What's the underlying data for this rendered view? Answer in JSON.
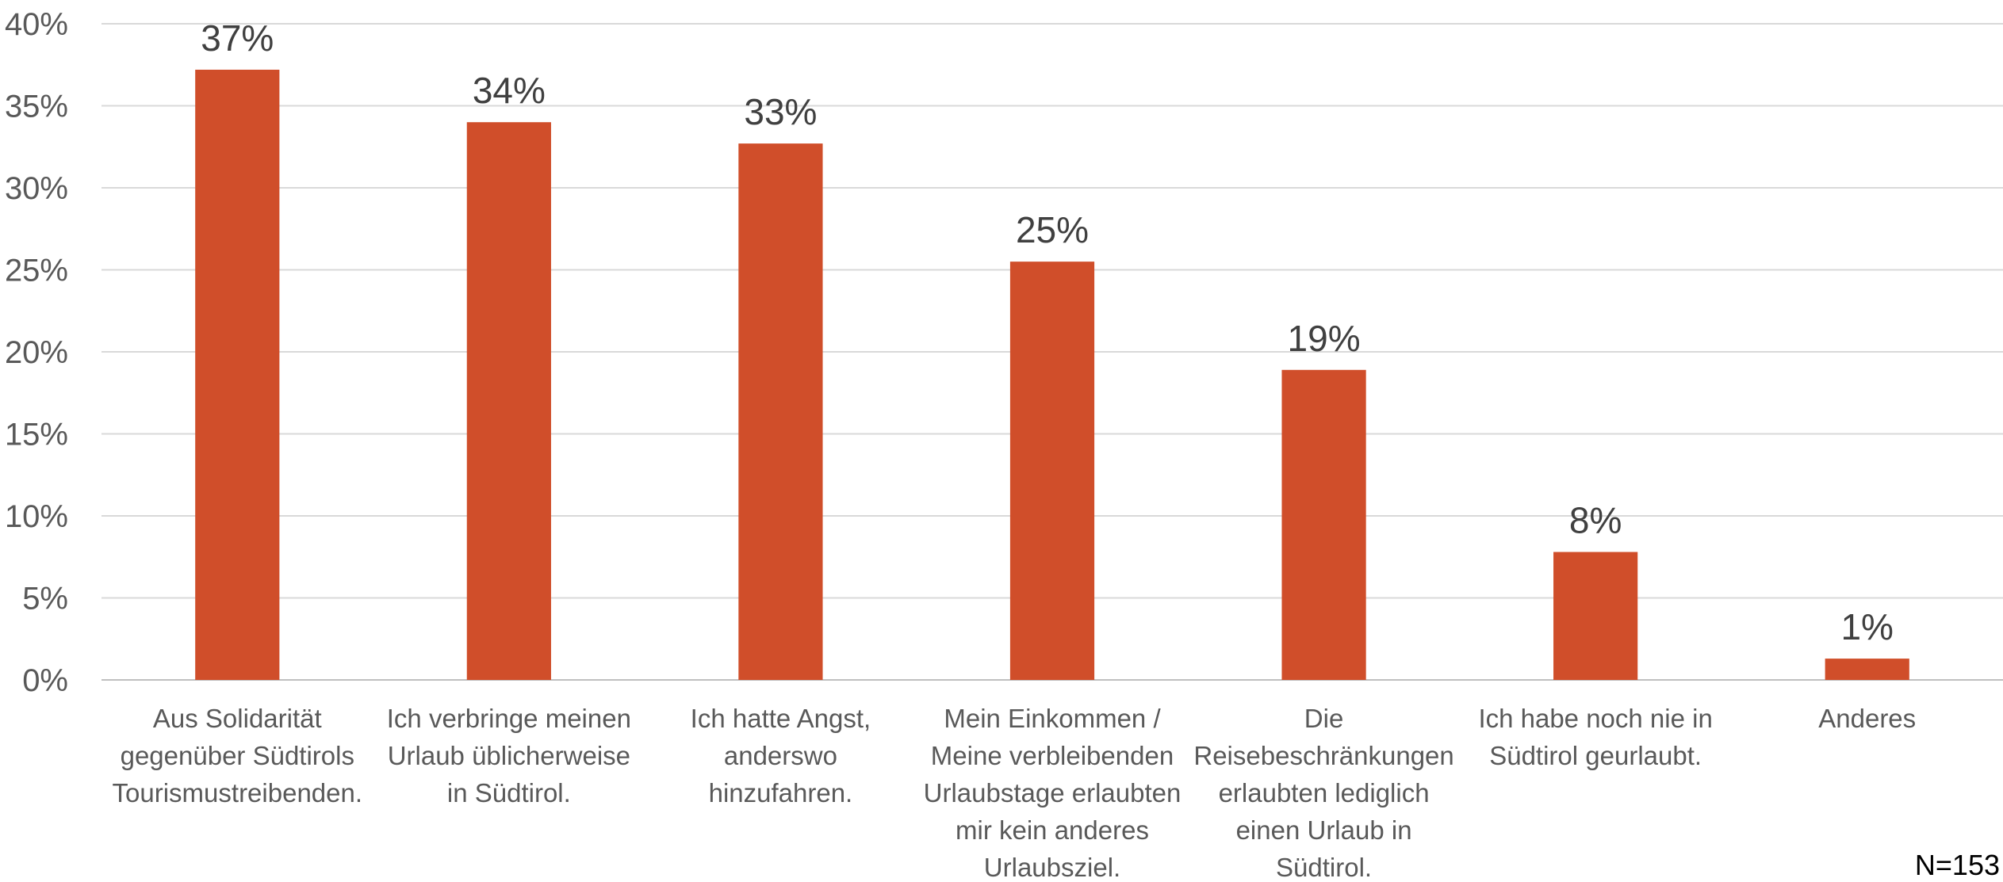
{
  "chart_data": {
    "type": "bar",
    "categories": [
      "Aus Solidarität gegenüber Südtirols Tourismustreibenden.",
      "Ich verbringe meinen Urlaub üblicherweise in Südtirol.",
      "Ich hatte Angst, anderswo hinzufahren.",
      "Mein Einkommen / Meine verbleibenden Urlaubstage erlaubten mir kein anderes Urlaubsziel.",
      "Die Reisebeschränkungen erlaubten lediglich einen Urlaub in Südtirol.",
      "Ich habe noch nie in Südtirol geurlaubt.",
      "Anderes"
    ],
    "category_lines": [
      [
        "Aus Solidarität",
        "gegenüber Südtirols",
        "Tourismustreibenden."
      ],
      [
        "Ich verbringe meinen",
        "Urlaub üblicherweise",
        "in Südtirol."
      ],
      [
        "Ich hatte Angst,",
        "anderswo",
        "hinzufahren."
      ],
      [
        "Mein Einkommen /",
        "Meine verbleibenden",
        "Urlaubstage erlaubten",
        "mir kein anderes",
        "Urlaubsziel."
      ],
      [
        "Die",
        "Reisebeschränkungen",
        "erlaubten lediglich",
        "einen Urlaub in",
        "Südtirol."
      ],
      [
        "Ich habe noch nie in",
        "Südtirol geurlaubt."
      ],
      [
        "Anderes"
      ]
    ],
    "values": [
      37.2,
      34.0,
      32.7,
      25.5,
      18.9,
      7.8,
      1.3
    ],
    "data_labels": [
      "37%",
      "34%",
      "33%",
      "25%",
      "19%",
      "8%",
      "1%"
    ],
    "y_ticks": [
      0,
      5,
      10,
      15,
      20,
      25,
      30,
      35,
      40
    ],
    "y_tick_labels": [
      "0%",
      "5%",
      "10%",
      "15%",
      "20%",
      "25%",
      "30%",
      "35%",
      "40%"
    ],
    "ylim": [
      0,
      40
    ],
    "bar_color": "#D04E2A",
    "grid": true,
    "grid_color": "#D9D9D9",
    "note": "N=153",
    "title": "",
    "xlabel": "",
    "ylabel": ""
  }
}
